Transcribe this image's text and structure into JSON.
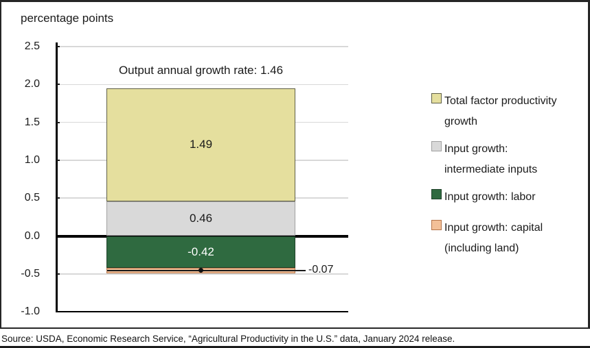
{
  "figure": {
    "unit_label": "percentage points",
    "source": "Source: USDA, Economic Research Service, “Agricultural Productivity in the U.S.” data, January 2024 release."
  },
  "chart_data": {
    "type": "bar",
    "subtype": "single-stacked-bar",
    "title": "Output annual growth rate: 1.46",
    "output_annual_growth_rate": 1.46,
    "ylabel": "percentage points",
    "ylim": [
      -1.0,
      2.5
    ],
    "yticks": [
      2.5,
      2.0,
      1.5,
      1.0,
      0.5,
      0.0,
      -0.5,
      -1.0
    ],
    "grid": true,
    "legend_position": "right",
    "zero_baseline": true,
    "segments": [
      {
        "name": "Total factor productivity growth",
        "value": 1.49,
        "color": "#e5df9e",
        "border": "#5f5f46",
        "label_color": "#1a1a1a",
        "label_style": "inside"
      },
      {
        "name": "Input growth: intermediate inputs",
        "value": 0.46,
        "color": "#d9d9d9",
        "border": "#a0a0a0",
        "label_color": "#1a1a1a",
        "label_style": "inside"
      },
      {
        "name": "Input growth: labor",
        "value": -0.42,
        "color": "#2f6a40",
        "border": "#1e4129",
        "label_color": "#ffffff",
        "label_style": "inside"
      },
      {
        "name": "Input growth: capital (including land)",
        "value": -0.07,
        "color": "#f3c098",
        "border": "#b5754a",
        "label_color": "#1a1a1a",
        "label_style": "callout-right"
      }
    ]
  }
}
